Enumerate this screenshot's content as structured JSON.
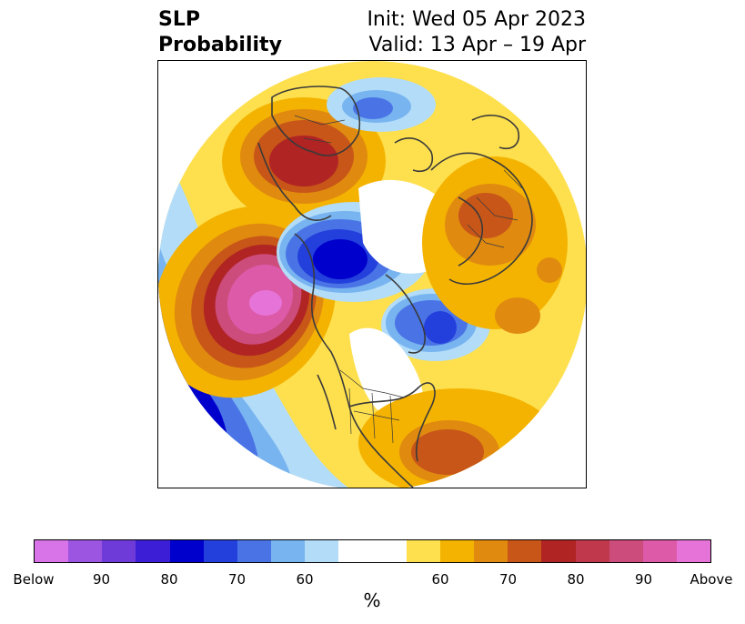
{
  "title": {
    "left_line1": "SLP",
    "left_line2": "Probability",
    "right_line1": "Init: Wed 05 Apr 2023",
    "right_line2": "Valid: 13 Apr – 19 Apr"
  },
  "colorbar": {
    "colors": [
      "#d873e8",
      "#9b55e0",
      "#6f3bd8",
      "#3b1ed6",
      "#0000cc",
      "#2440dc",
      "#4a74e6",
      "#78b4f0",
      "#b2dcf8",
      "#ffffff",
      "#ffffff",
      "#fee04e",
      "#f4b300",
      "#e08a10",
      "#c85618",
      "#b02424",
      "#c0384c",
      "#cc4c7c",
      "#dc5aa8",
      "#e674d8"
    ],
    "ticks": [
      "Below",
      "90",
      "80",
      "70",
      "60",
      "60",
      "70",
      "80",
      "90",
      "Above"
    ],
    "unit": "%"
  },
  "map": {
    "projection": "polar-stereographic-north",
    "colors": {
      "ocean_ring_blue": "#b2dcf8",
      "above_yellow": "#fee04e",
      "above_gold": "#f4b300",
      "above_orange": "#e08a10",
      "above_rust": "#c85618",
      "above_red": "#b02424",
      "above_pink": "#cc4c7c",
      "above_magenta": "#dc5aa8",
      "above_violet": "#e674d8",
      "below_light": "#78b4f0",
      "below_mid": "#4a74e6",
      "below_dark": "#2440dc",
      "below_deep": "#0000cc",
      "below_purple": "#6f3bd8",
      "coast": "#3a3a3a"
    }
  }
}
